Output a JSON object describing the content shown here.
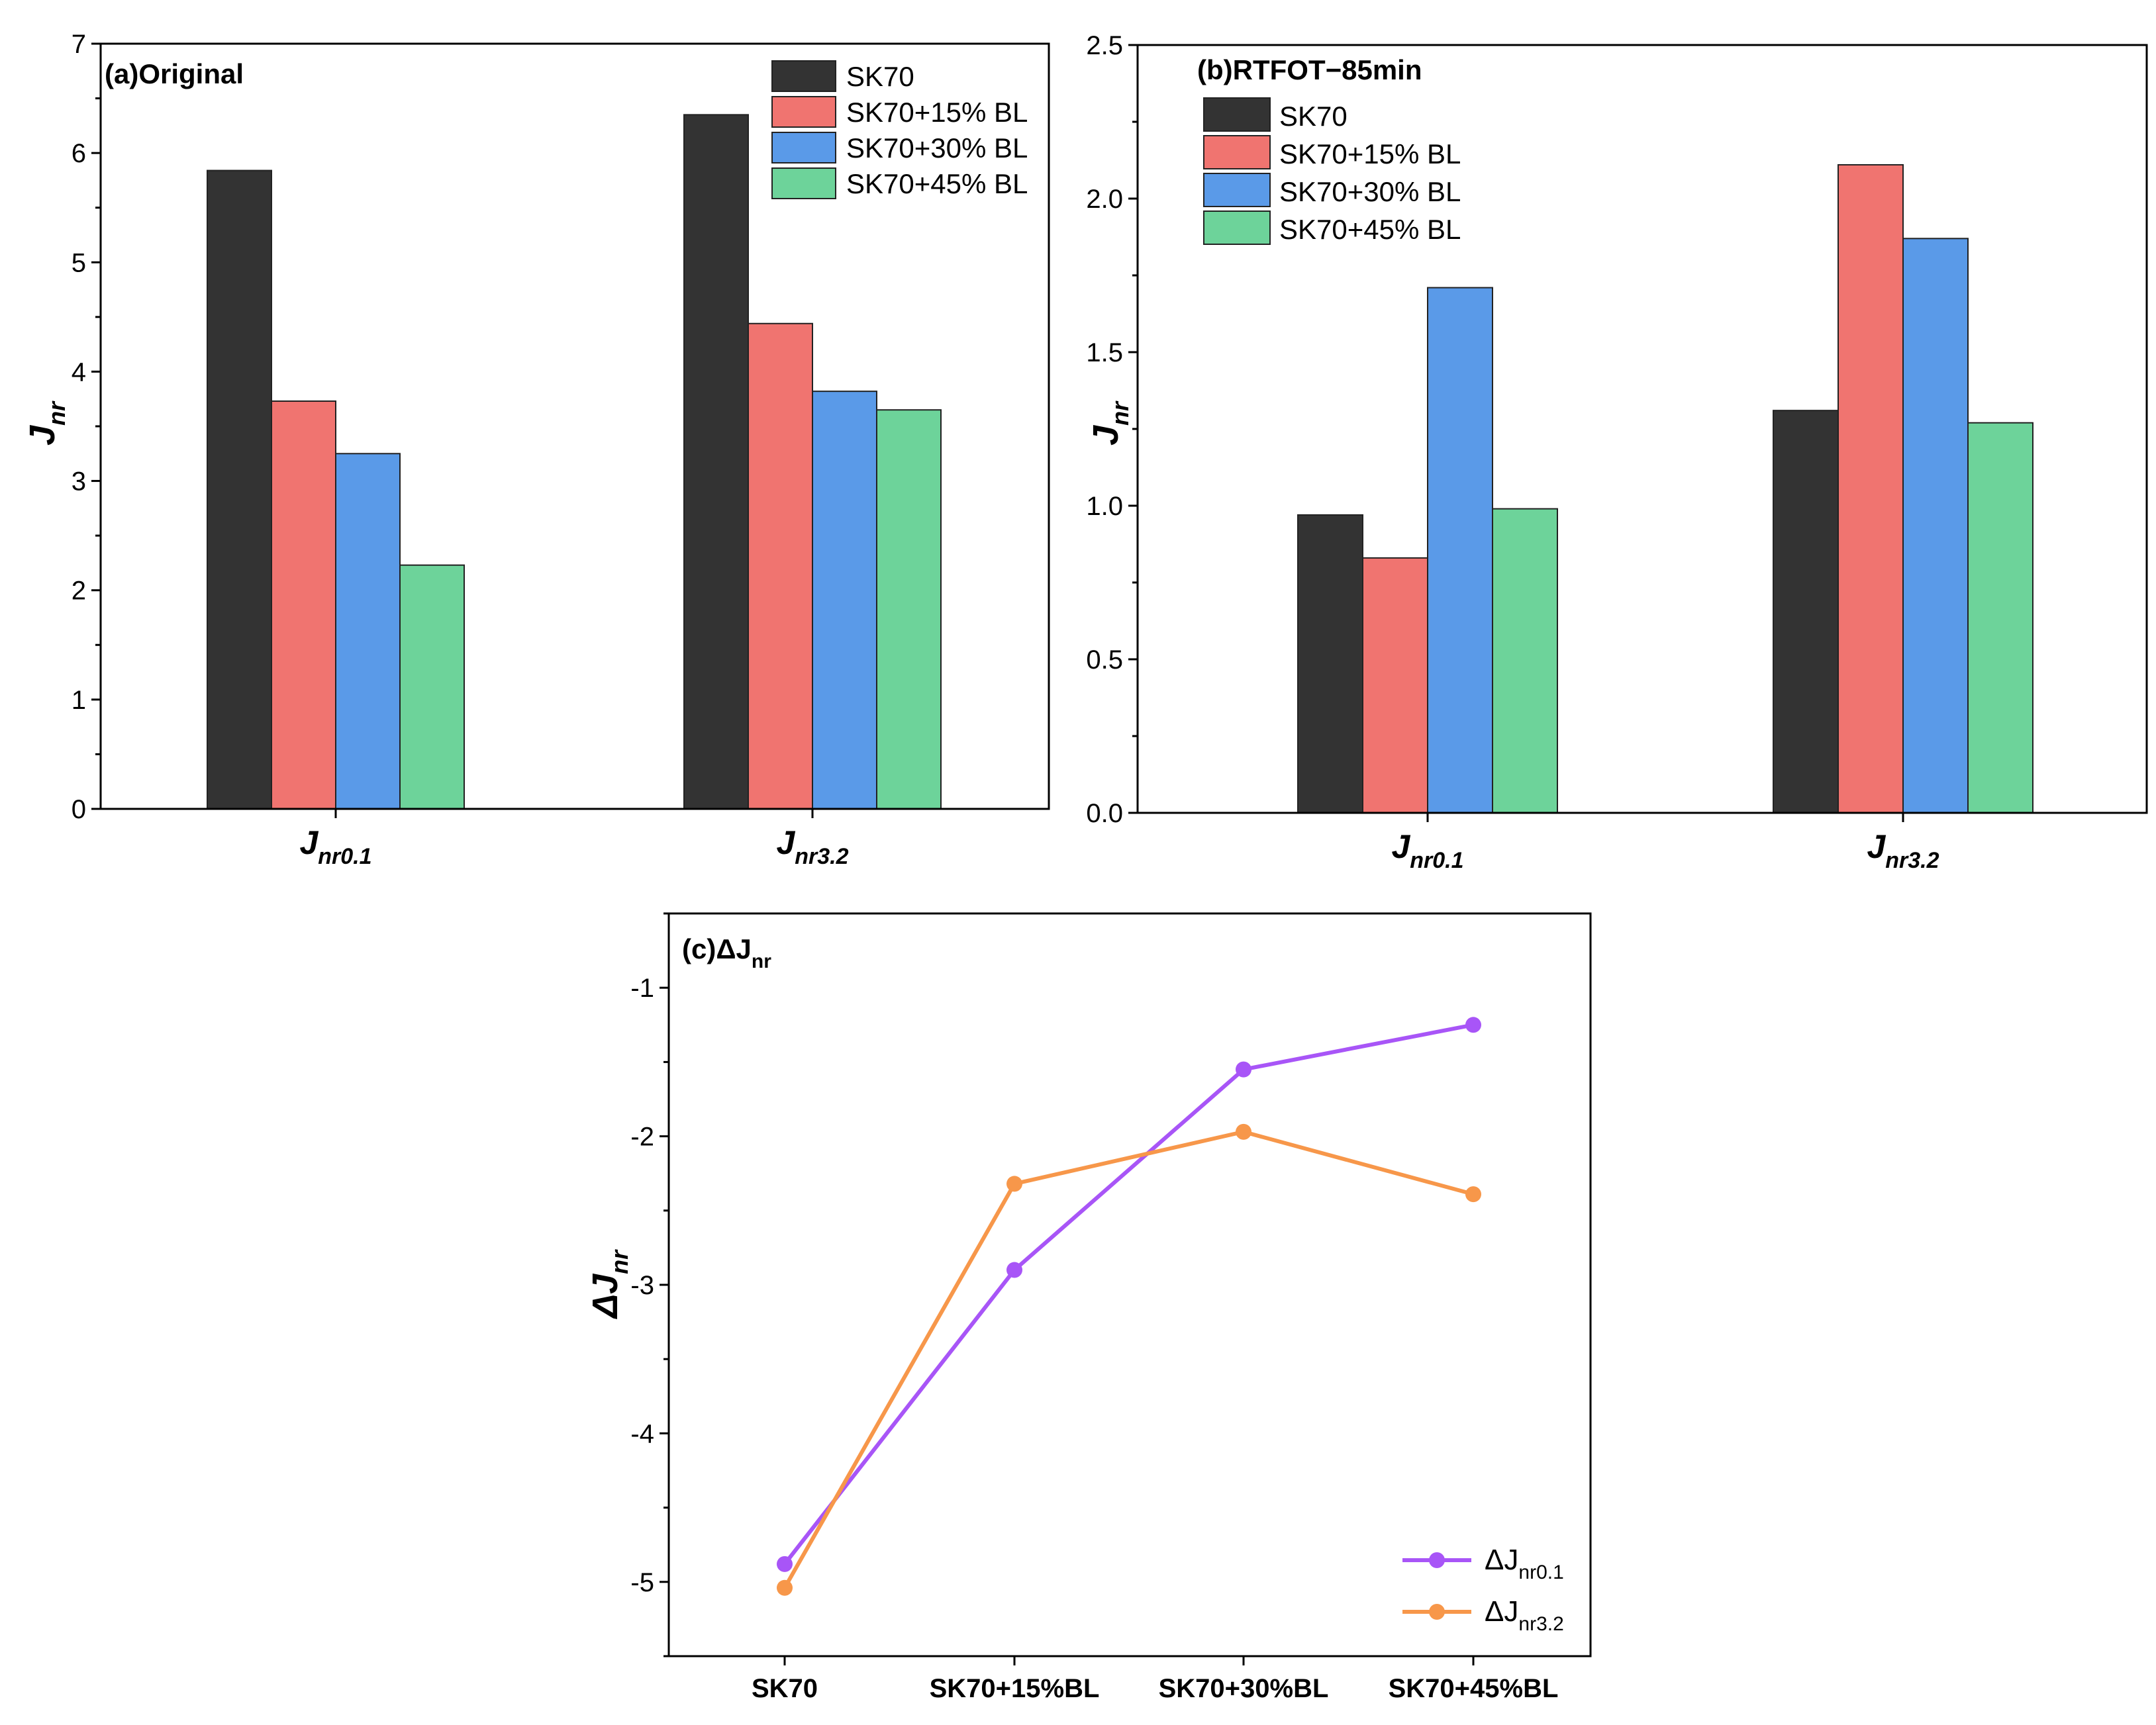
{
  "chart_data": [
    {
      "type": "bar",
      "panel_label": "(a)Original",
      "categories": [
        {
          "main": "J",
          "sub": "nr0.1"
        },
        {
          "main": "J",
          "sub": "nr3.2"
        }
      ],
      "ylabel": {
        "main": "J",
        "sub": "nr"
      },
      "ylim": [
        0,
        7
      ],
      "yticks": [
        "0",
        "1",
        "2",
        "3",
        "4",
        "5",
        "6",
        "7"
      ],
      "legend_position": "top-right",
      "series": [
        {
          "name": "SK70",
          "color": "#333333",
          "values": [
            5.84,
            6.35
          ]
        },
        {
          "name": "SK70+15% BL",
          "color": "#f07470",
          "values": [
            3.73,
            4.44
          ]
        },
        {
          "name": "SK70+30% BL",
          "color": "#5a9ae8",
          "values": [
            3.25,
            3.82
          ]
        },
        {
          "name": "SK70+45% BL",
          "color": "#6dd39a",
          "values": [
            2.23,
            3.65
          ]
        }
      ]
    },
    {
      "type": "bar",
      "panel_label": "(b)RTFOT−85min",
      "categories": [
        {
          "main": "J",
          "sub": "nr0.1"
        },
        {
          "main": "J",
          "sub": "nr3.2"
        }
      ],
      "ylabel": {
        "main": "J",
        "sub": "nr"
      },
      "ylim": [
        0,
        2.5
      ],
      "yticks": [
        "0.0",
        "0.5",
        "1.0",
        "1.5",
        "2.0",
        "2.5"
      ],
      "legend_position": "top-left",
      "series": [
        {
          "name": "SK70",
          "color": "#333333",
          "values": [
            0.97,
            1.31
          ]
        },
        {
          "name": "SK70+15% BL",
          "color": "#f07470",
          "values": [
            0.83,
            2.11
          ]
        },
        {
          "name": "SK70+30% BL",
          "color": "#5a9ae8",
          "values": [
            1.71,
            1.87
          ]
        },
        {
          "name": "SK70+45% BL",
          "color": "#6dd39a",
          "values": [
            0.99,
            1.27
          ]
        }
      ]
    },
    {
      "type": "line",
      "panel_label": {
        "main": "(c)ΔJ",
        "sub": "nr"
      },
      "categories": [
        "SK70",
        "SK70+15%BL",
        "SK70+30%BL",
        "SK70+45%BL"
      ],
      "ylabel": {
        "main": "ΔJ",
        "sub": "nr"
      },
      "ylim": [
        -5.5,
        -0.5
      ],
      "yticks": [
        "-5",
        "-4",
        "-3",
        "-2",
        "-1"
      ],
      "legend_position": "bottom-right",
      "series": [
        {
          "name": {
            "main": "ΔJ",
            "sub": "nr0.1"
          },
          "color": "#a855f7",
          "values": [
            -4.88,
            -2.9,
            -1.55,
            -1.25
          ]
        },
        {
          "name": {
            "main": "ΔJ",
            "sub": "nr3.2"
          },
          "color": "#f7974a",
          "values": [
            -5.04,
            -2.32,
            -1.97,
            -2.39
          ]
        }
      ]
    }
  ]
}
